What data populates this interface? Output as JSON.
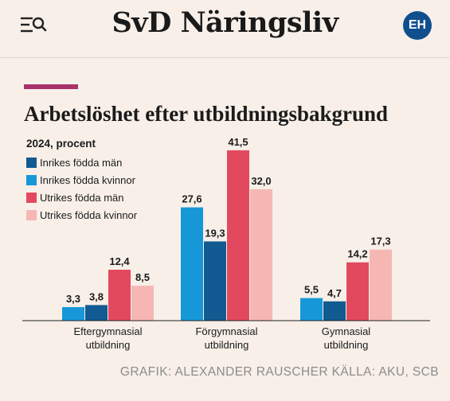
{
  "header": {
    "brand": "SvD Näringsliv",
    "avatar": "EH",
    "menu_icon": "menu-search-icon"
  },
  "colors": {
    "accent": "#a8336b",
    "inrikes_man": "#125a92",
    "inrikes_kvinnor": "#1698d8",
    "utrikes_man": "#e2495f",
    "utrikes_kvinnor": "#f6b7b4"
  },
  "chart_data": {
    "type": "bar",
    "title": "Arbetslöshet efter utbildningsbakgrund",
    "subtitle": "2024, procent",
    "categories": [
      "Eftergymnasial\nutbildning",
      "Förgymnasial\nutbildning",
      "Gymnasial\nutbildning"
    ],
    "series": [
      {
        "name": "Inrikes födda män",
        "color": "#125a92",
        "values": [
          3.8,
          19.3,
          4.7
        ],
        "labels": [
          "3,8",
          "19,3",
          "4,7"
        ]
      },
      {
        "name": "Inrikes födda kvinnor",
        "color": "#1698d8",
        "values": [
          3.3,
          27.6,
          5.5
        ],
        "labels": [
          "3,3",
          "27,6",
          "5,5"
        ]
      },
      {
        "name": "Utrikes födda män",
        "color": "#e2495f",
        "values": [
          12.4,
          41.5,
          14.2
        ],
        "labels": [
          "12,4",
          "41,5",
          "14,2"
        ]
      },
      {
        "name": "Utrikes födda kvinnor",
        "color": "#f6b7b4",
        "values": [
          8.5,
          32.0,
          17.3
        ],
        "labels": [
          "8,5",
          "32,0",
          "17,3"
        ]
      }
    ],
    "draw_order": [
      1,
      0,
      2,
      3
    ],
    "ylim": [
      0,
      44
    ],
    "grid": false,
    "legend_position": "top-left"
  },
  "credit": "GRAFIK: ALEXANDER RAUSCHER KÄLLA: AKU, SCB"
}
